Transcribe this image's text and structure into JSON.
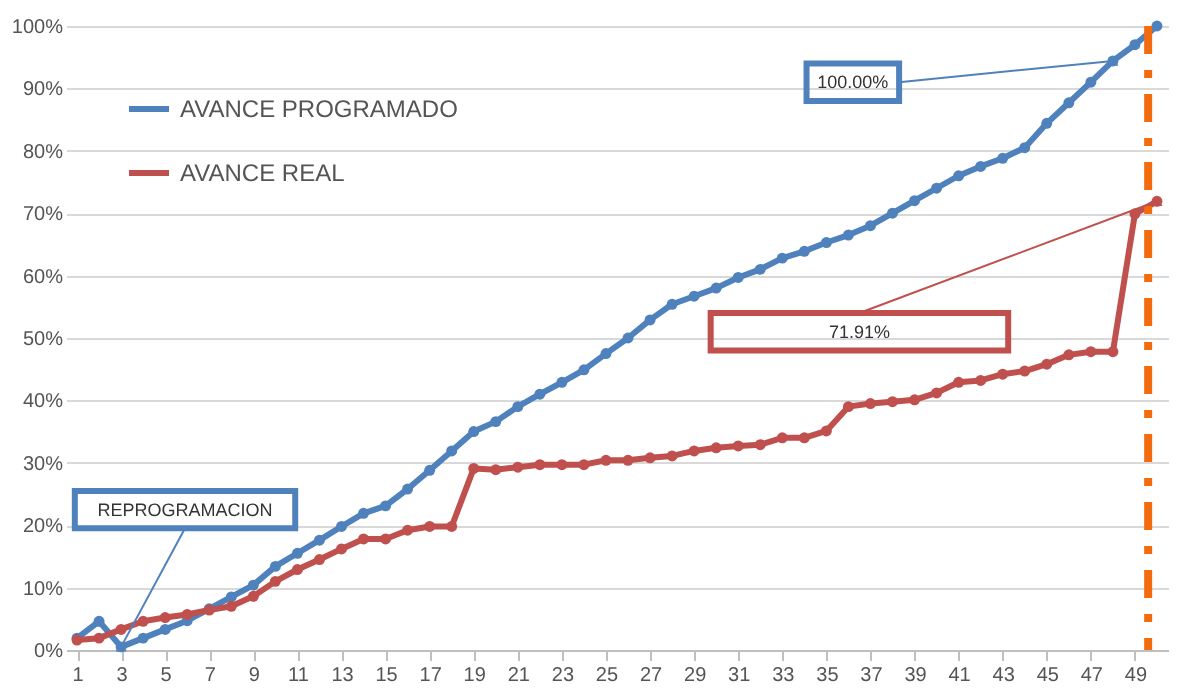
{
  "chart_data": {
    "type": "line",
    "x": [
      1,
      2,
      3,
      4,
      5,
      6,
      7,
      8,
      9,
      10,
      11,
      12,
      13,
      14,
      15,
      16,
      17,
      18,
      19,
      20,
      21,
      22,
      23,
      24,
      25,
      26,
      27,
      28,
      29,
      30,
      31,
      32,
      33,
      34,
      35,
      36,
      37,
      38,
      39,
      40,
      41,
      42,
      43,
      44,
      45,
      46,
      47,
      48,
      49,
      50
    ],
    "series": [
      {
        "name": "AVANCE PROGRAMADO",
        "color": "#4f81bd",
        "values": [
          1.9,
          4.6,
          0.5,
          1.9,
          3.3,
          4.7,
          6.6,
          8.5,
          10.4,
          13.4,
          15.5,
          17.6,
          19.8,
          21.9,
          23.1,
          25.8,
          28.8,
          31.9,
          35,
          36.6,
          39,
          41,
          42.9,
          44.9,
          47.5,
          50,
          52.9,
          55.4,
          56.7,
          58,
          59.7,
          61,
          62.8,
          63.9,
          65.3,
          66.5,
          68,
          70,
          72,
          74,
          76,
          77.5,
          78.8,
          80.5,
          84.4,
          87.7,
          91,
          94.4,
          97,
          100
        ]
      },
      {
        "name": "AVANCE REAL",
        "color": "#c0504d",
        "values": [
          1.6,
          1.9,
          3.3,
          4.6,
          5.2,
          5.7,
          6.4,
          7,
          8.6,
          11,
          12.9,
          14.5,
          16.2,
          17.8,
          17.8,
          19.2,
          19.8,
          19.8,
          29.1,
          28.9,
          29.3,
          29.7,
          29.7,
          29.7,
          30.4,
          30.4,
          30.8,
          31.1,
          31.9,
          32.4,
          32.7,
          32.9,
          34,
          34,
          35.1,
          39,
          39.5,
          39.8,
          40.1,
          41.2,
          42.9,
          43.2,
          44.2,
          44.7,
          45.8,
          47.3,
          47.8,
          47.8,
          69.9,
          71.91
        ]
      }
    ],
    "xlim": [
      0.5,
      50.5
    ],
    "xticks": [
      1,
      3,
      5,
      7,
      9,
      11,
      13,
      15,
      17,
      19,
      21,
      23,
      25,
      27,
      29,
      31,
      33,
      35,
      37,
      39,
      41,
      43,
      45,
      47,
      49
    ],
    "ylim": [
      0,
      100
    ],
    "yticks": [
      {
        "value": 0,
        "label": "0%"
      },
      {
        "value": 10,
        "label": "10%"
      },
      {
        "value": 20,
        "label": "20%"
      },
      {
        "value": 30,
        "label": "30%"
      },
      {
        "value": 40,
        "label": "40%"
      },
      {
        "value": 50,
        "label": "50%"
      },
      {
        "value": 60,
        "label": "60%"
      },
      {
        "value": 70,
        "label": "70%"
      },
      {
        "value": 80,
        "label": "80%"
      },
      {
        "value": 90,
        "label": "90%"
      },
      {
        "value": 100,
        "label": "100%"
      }
    ],
    "grid": "y",
    "marker": "circle",
    "line_style": "solid",
    "legend": "top left",
    "ref_lines": [
      {
        "axis": "x",
        "value": 49.6,
        "color": "#f26b0f",
        "line_style": "dashdot"
      }
    ],
    "annotations": [
      {
        "text": "REPROGRAMACION",
        "x": 3,
        "y": 0.5
      },
      {
        "text": "100.00%",
        "x": 48,
        "y": 94.4
      },
      {
        "text": "71.91%",
        "x": 50,
        "y": 71.91
      }
    ]
  }
}
